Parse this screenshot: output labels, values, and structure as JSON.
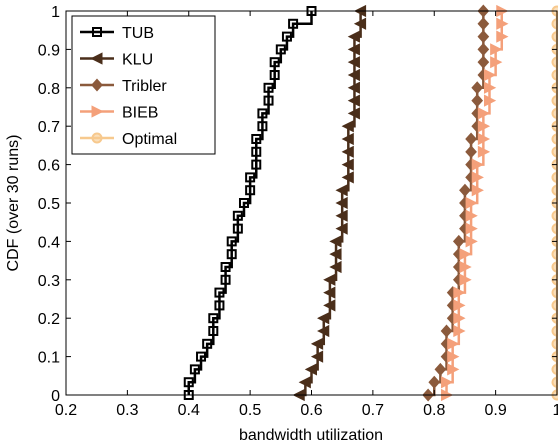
{
  "chart_data": {
    "type": "line",
    "title": "",
    "xlabel": "bandwidth utilization",
    "ylabel": "CDF (over 30 runs)",
    "xlim": [
      0.2,
      1.0
    ],
    "ylim": [
      0,
      1
    ],
    "grid": false,
    "legend_position": "top-left",
    "x_ticks": [
      "0.2",
      "0.3",
      "0.4",
      "0.5",
      "0.6",
      "0.7",
      "0.8",
      "0.9",
      "1"
    ],
    "y_ticks": [
      "0",
      "0.1",
      "0.2",
      "0.3",
      "0.4",
      "0.5",
      "0.6",
      "0.7",
      "0.8",
      "0.9",
      "1"
    ],
    "series": [
      {
        "name": "TUB",
        "color": "#000000",
        "marker": "square",
        "x": [
          0.4,
          0.4,
          0.41,
          0.42,
          0.43,
          0.44,
          0.44,
          0.45,
          0.45,
          0.46,
          0.46,
          0.47,
          0.47,
          0.48,
          0.48,
          0.49,
          0.5,
          0.5,
          0.51,
          0.51,
          0.51,
          0.52,
          0.52,
          0.53,
          0.53,
          0.54,
          0.54,
          0.55,
          0.56,
          0.57,
          0.6
        ],
        "y": [
          0.0,
          0.0333,
          0.0667,
          0.1,
          0.1333,
          0.1667,
          0.2,
          0.2333,
          0.2667,
          0.3,
          0.3333,
          0.3667,
          0.4,
          0.4333,
          0.4667,
          0.5,
          0.5333,
          0.5667,
          0.6,
          0.6333,
          0.6667,
          0.7,
          0.7333,
          0.7667,
          0.8,
          0.8333,
          0.8667,
          0.9,
          0.9333,
          0.9667,
          1.0
        ]
      },
      {
        "name": "KLU",
        "color": "#4a2e1a",
        "marker": "triangle-left",
        "x": [
          0.58,
          0.59,
          0.6,
          0.61,
          0.61,
          0.62,
          0.62,
          0.63,
          0.63,
          0.63,
          0.64,
          0.64,
          0.64,
          0.65,
          0.65,
          0.65,
          0.65,
          0.66,
          0.66,
          0.66,
          0.66,
          0.66,
          0.67,
          0.67,
          0.67,
          0.67,
          0.67,
          0.67,
          0.67,
          0.68,
          0.68
        ],
        "y": [
          0.0,
          0.0333,
          0.0667,
          0.1,
          0.1333,
          0.1667,
          0.2,
          0.2333,
          0.2667,
          0.3,
          0.3333,
          0.3667,
          0.4,
          0.4333,
          0.4667,
          0.5,
          0.5333,
          0.5667,
          0.6,
          0.6333,
          0.6667,
          0.7,
          0.7333,
          0.7667,
          0.8,
          0.8333,
          0.8667,
          0.9,
          0.9333,
          0.9667,
          1.0
        ]
      },
      {
        "name": "Tribler",
        "color": "#8b5a3c",
        "marker": "diamond",
        "x": [
          0.79,
          0.8,
          0.81,
          0.82,
          0.82,
          0.82,
          0.83,
          0.83,
          0.83,
          0.84,
          0.84,
          0.84,
          0.84,
          0.85,
          0.85,
          0.85,
          0.85,
          0.86,
          0.86,
          0.86,
          0.86,
          0.87,
          0.87,
          0.87,
          0.87,
          0.88,
          0.88,
          0.88,
          0.88,
          0.88,
          0.88
        ],
        "y": [
          0.0,
          0.0333,
          0.0667,
          0.1,
          0.1333,
          0.1667,
          0.2,
          0.2333,
          0.2667,
          0.3,
          0.3333,
          0.3667,
          0.4,
          0.4333,
          0.4667,
          0.5,
          0.5333,
          0.5667,
          0.6,
          0.6333,
          0.6667,
          0.7,
          0.7333,
          0.7667,
          0.8,
          0.8333,
          0.8667,
          0.9,
          0.9333,
          0.9667,
          1.0
        ]
      },
      {
        "name": "BIEB",
        "color": "#f4a07a",
        "marker": "triangle-right",
        "x": [
          0.82,
          0.82,
          0.83,
          0.83,
          0.83,
          0.84,
          0.84,
          0.84,
          0.84,
          0.85,
          0.85,
          0.85,
          0.86,
          0.86,
          0.86,
          0.86,
          0.87,
          0.87,
          0.87,
          0.88,
          0.88,
          0.88,
          0.88,
          0.89,
          0.89,
          0.89,
          0.9,
          0.9,
          0.91,
          0.91,
          0.91
        ],
        "y": [
          0.0,
          0.0333,
          0.0667,
          0.1,
          0.1333,
          0.1667,
          0.2,
          0.2333,
          0.2667,
          0.3,
          0.3333,
          0.3667,
          0.4,
          0.4333,
          0.4667,
          0.5,
          0.5333,
          0.5667,
          0.6,
          0.6333,
          0.6667,
          0.7,
          0.7333,
          0.7667,
          0.8,
          0.8333,
          0.8667,
          0.9,
          0.9333,
          0.9667,
          1.0
        ]
      },
      {
        "name": "Optimal",
        "color": "#f7c98e",
        "marker": "circle",
        "x": [
          1.0,
          1.0,
          1.0,
          1.0,
          1.0,
          1.0,
          1.0,
          1.0,
          1.0,
          1.0,
          1.0,
          1.0,
          1.0,
          1.0,
          1.0,
          1.0,
          1.0,
          1.0,
          1.0,
          1.0,
          1.0,
          1.0,
          1.0,
          1.0,
          1.0,
          1.0,
          1.0,
          1.0,
          1.0,
          1.0,
          1.0
        ],
        "y": [
          0.0,
          0.0333,
          0.0667,
          0.1,
          0.1333,
          0.1667,
          0.2,
          0.2333,
          0.2667,
          0.3,
          0.3333,
          0.3667,
          0.4,
          0.4333,
          0.4667,
          0.5,
          0.5333,
          0.5667,
          0.6,
          0.6333,
          0.6667,
          0.7,
          0.7333,
          0.7667,
          0.8,
          0.8333,
          0.8667,
          0.9,
          0.9333,
          0.9667,
          1.0
        ]
      }
    ]
  }
}
